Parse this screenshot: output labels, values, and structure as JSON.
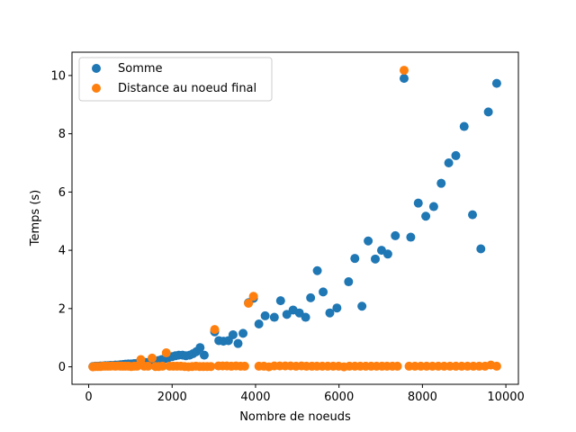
{
  "chart_data": {
    "type": "scatter",
    "title": "",
    "xlabel": "Nombre de noeuds",
    "ylabel": "Temps (s)",
    "xlim": [
      -400,
      10300
    ],
    "ylim": [
      -0.6,
      10.8
    ],
    "xticks": [
      0,
      2000,
      4000,
      6000,
      8000,
      10000
    ],
    "yticks": [
      0,
      2,
      4,
      6,
      8,
      10
    ],
    "grid": false,
    "legend_position": "top-left",
    "series": [
      {
        "name": "Somme",
        "color": "#1f77b4",
        "points": [
          [
            100,
            0.01
          ],
          [
            160,
            0.02
          ],
          [
            220,
            0.02
          ],
          [
            280,
            0.03
          ],
          [
            340,
            0.03
          ],
          [
            400,
            0.04
          ],
          [
            460,
            0.04
          ],
          [
            520,
            0.05
          ],
          [
            580,
            0.05
          ],
          [
            640,
            0.06
          ],
          [
            700,
            0.06
          ],
          [
            760,
            0.07
          ],
          [
            820,
            0.08
          ],
          [
            880,
            0.09
          ],
          [
            950,
            0.1
          ],
          [
            1020,
            0.1
          ],
          [
            1090,
            0.11
          ],
          [
            1160,
            0.12
          ],
          [
            1230,
            0.13
          ],
          [
            1300,
            0.14
          ],
          [
            1370,
            0.15
          ],
          [
            1450,
            0.16
          ],
          [
            1530,
            0.18
          ],
          [
            1600,
            0.2
          ],
          [
            1680,
            0.22
          ],
          [
            1750,
            0.25
          ],
          [
            1830,
            0.28
          ],
          [
            1920,
            0.32
          ],
          [
            2000,
            0.35
          ],
          [
            2080,
            0.38
          ],
          [
            2160,
            0.4
          ],
          [
            2250,
            0.4
          ],
          [
            2330,
            0.38
          ],
          [
            2420,
            0.4
          ],
          [
            2500,
            0.45
          ],
          [
            2580,
            0.52
          ],
          [
            2670,
            0.66
          ],
          [
            2770,
            0.4
          ],
          [
            3020,
            1.2
          ],
          [
            3120,
            0.9
          ],
          [
            3230,
            0.88
          ],
          [
            3350,
            0.9
          ],
          [
            3460,
            1.1
          ],
          [
            3580,
            0.8
          ],
          [
            3700,
            1.15
          ],
          [
            3830,
            2.2
          ],
          [
            3950,
            2.35
          ],
          [
            4080,
            1.47
          ],
          [
            4230,
            1.75
          ],
          [
            4450,
            1.7
          ],
          [
            4600,
            2.27
          ],
          [
            4750,
            1.8
          ],
          [
            4900,
            1.95
          ],
          [
            5050,
            1.85
          ],
          [
            5200,
            1.7
          ],
          [
            5320,
            2.37
          ],
          [
            5480,
            3.3
          ],
          [
            5620,
            2.57
          ],
          [
            5780,
            1.85
          ],
          [
            5950,
            2.02
          ],
          [
            6230,
            2.92
          ],
          [
            6380,
            3.72
          ],
          [
            6550,
            2.08
          ],
          [
            6700,
            4.32
          ],
          [
            6870,
            3.7
          ],
          [
            7020,
            4.0
          ],
          [
            7170,
            3.87
          ],
          [
            7350,
            4.5
          ],
          [
            7560,
            9.9
          ],
          [
            7720,
            4.45
          ],
          [
            7900,
            5.62
          ],
          [
            8080,
            5.17
          ],
          [
            8270,
            5.5
          ],
          [
            8450,
            6.3
          ],
          [
            8630,
            7.0
          ],
          [
            8800,
            7.25
          ],
          [
            9000,
            8.25
          ],
          [
            9200,
            5.22
          ],
          [
            9400,
            4.05
          ],
          [
            9580,
            8.75
          ],
          [
            9780,
            9.73
          ]
        ]
      },
      {
        "name": "Distance au noeud final",
        "color": "#ff7f0e",
        "points": [
          [
            100,
            0.0
          ],
          [
            160,
            0.01
          ],
          [
            220,
            0.01
          ],
          [
            280,
            0.01
          ],
          [
            340,
            0.02
          ],
          [
            400,
            0.02
          ],
          [
            460,
            0.02
          ],
          [
            520,
            0.02
          ],
          [
            580,
            0.03
          ],
          [
            640,
            0.02
          ],
          [
            700,
            0.03
          ],
          [
            760,
            0.02
          ],
          [
            820,
            0.02
          ],
          [
            880,
            0.02
          ],
          [
            950,
            0.02
          ],
          [
            1020,
            0.01
          ],
          [
            1090,
            0.02
          ],
          [
            1160,
            0.02
          ],
          [
            1250,
            0.25
          ],
          [
            1330,
            0.02
          ],
          [
            1420,
            0.02
          ],
          [
            1520,
            0.3
          ],
          [
            1600,
            0.01
          ],
          [
            1680,
            0.01
          ],
          [
            1770,
            0.02
          ],
          [
            1860,
            0.48
          ],
          [
            1940,
            0.02
          ],
          [
            2030,
            0.02
          ],
          [
            2120,
            0.02
          ],
          [
            2210,
            0.02
          ],
          [
            2300,
            0.01
          ],
          [
            2390,
            0.0
          ],
          [
            2480,
            0.01
          ],
          [
            2570,
            0.02
          ],
          [
            2660,
            0.01
          ],
          [
            2750,
            0.01
          ],
          [
            2840,
            0.01
          ],
          [
            2930,
            0.01
          ],
          [
            3020,
            1.28
          ],
          [
            3110,
            0.03
          ],
          [
            3210,
            0.03
          ],
          [
            3310,
            0.03
          ],
          [
            3420,
            0.02
          ],
          [
            3530,
            0.03
          ],
          [
            3640,
            0.02
          ],
          [
            3740,
            0.02
          ],
          [
            3830,
            2.18
          ],
          [
            3950,
            2.42
          ],
          [
            4080,
            0.02
          ],
          [
            4200,
            0.02
          ],
          [
            4320,
            0.0
          ],
          [
            4450,
            0.03
          ],
          [
            4580,
            0.03
          ],
          [
            4710,
            0.03
          ],
          [
            4840,
            0.03
          ],
          [
            4970,
            0.02
          ],
          [
            5100,
            0.03
          ],
          [
            5220,
            0.02
          ],
          [
            5350,
            0.02
          ],
          [
            5470,
            0.02
          ],
          [
            5600,
            0.02
          ],
          [
            5730,
            0.02
          ],
          [
            5860,
            0.02
          ],
          [
            5990,
            0.02
          ],
          [
            6120,
            0.0
          ],
          [
            6250,
            0.02
          ],
          [
            6380,
            0.02
          ],
          [
            6510,
            0.02
          ],
          [
            6640,
            0.02
          ],
          [
            6770,
            0.02
          ],
          [
            6900,
            0.02
          ],
          [
            7030,
            0.02
          ],
          [
            7150,
            0.02
          ],
          [
            7280,
            0.02
          ],
          [
            7400,
            0.02
          ],
          [
            7560,
            10.18
          ],
          [
            7680,
            0.02
          ],
          [
            7820,
            0.02
          ],
          [
            7960,
            0.02
          ],
          [
            8100,
            0.02
          ],
          [
            8240,
            0.02
          ],
          [
            8380,
            0.02
          ],
          [
            8520,
            0.02
          ],
          [
            8660,
            0.02
          ],
          [
            8800,
            0.02
          ],
          [
            8940,
            0.02
          ],
          [
            9080,
            0.02
          ],
          [
            9220,
            0.02
          ],
          [
            9360,
            0.02
          ],
          [
            9500,
            0.02
          ],
          [
            9640,
            0.06
          ],
          [
            9780,
            0.02
          ]
        ]
      }
    ]
  }
}
